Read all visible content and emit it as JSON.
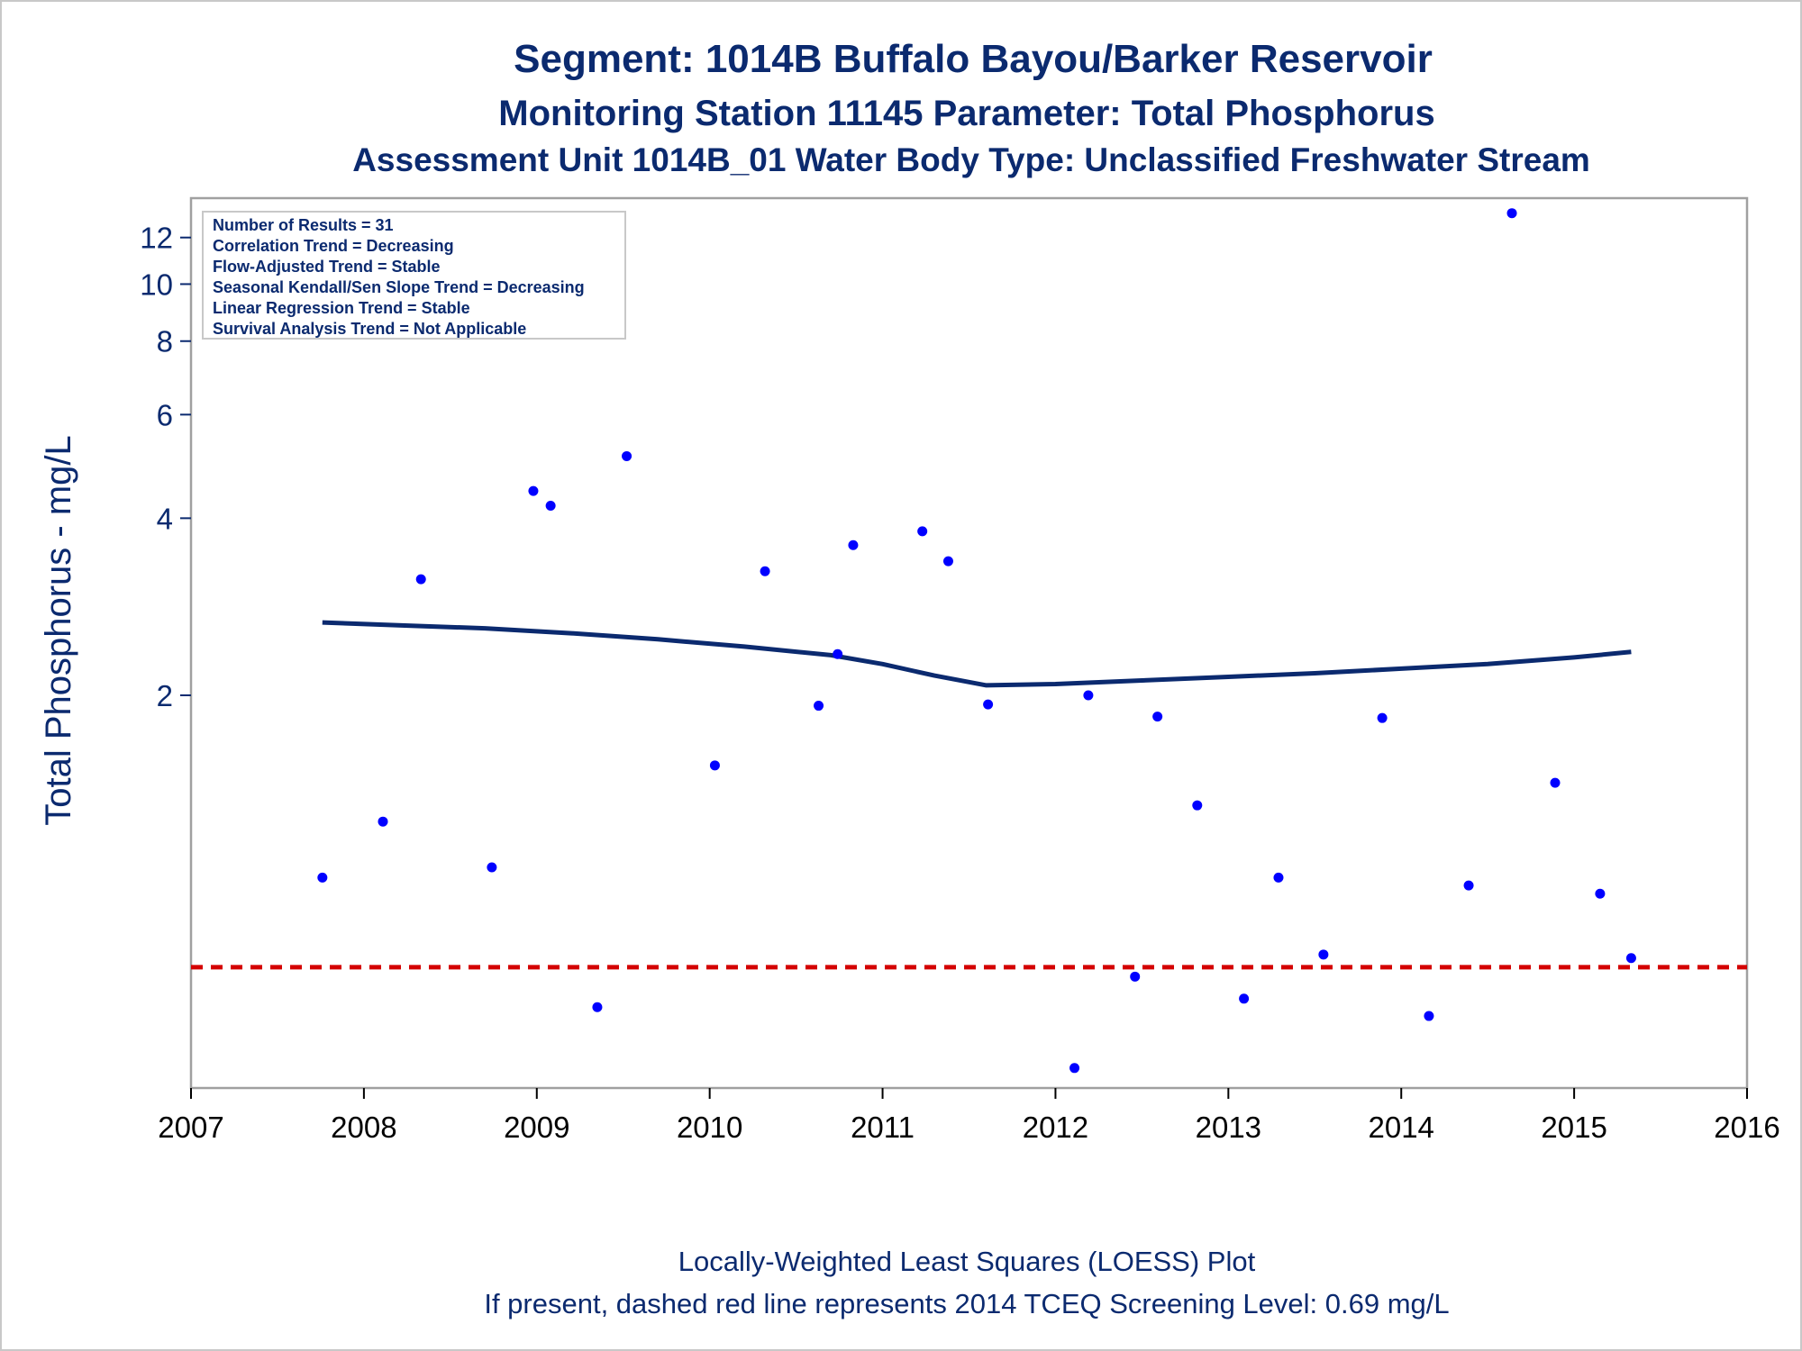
{
  "titles": {
    "line1": "Segment: 1014B  Buffalo Bayou/Barker Reservoir",
    "line2": "Monitoring Station 11145 Parameter: Total Phosphorus",
    "line3": "Assessment Unit 1014B_01   Water Body Type: Unclassified Freshwater Stream"
  },
  "footnotes": {
    "line1": "Locally-Weighted Least Squares (LOESS) Plot",
    "line2": "If present, dashed red line represents 2014 TCEQ Screening Level: 0.69 mg/L"
  },
  "inset": [
    "Number of Results = 31",
    "Correlation Trend = Decreasing",
    "Flow-Adjusted Trend = Stable",
    "Seasonal Kendall/Sen Slope Trend = Decreasing",
    "Linear Regression Trend = Stable",
    "Survival Analysis Trend = Not Applicable"
  ],
  "colors": {
    "points": "#0000ff",
    "loess": "#0b2a6f",
    "screening": "#d40000",
    "frame": "#a0a0a0"
  },
  "chart_data": {
    "type": "scatter",
    "ylabel": "Total Phosphorus - mg/L",
    "y_scale": "log",
    "xlim": [
      2007,
      2016
    ],
    "ylim": [
      0.43,
      14
    ],
    "x_ticks": [
      2007,
      2008,
      2009,
      2010,
      2011,
      2012,
      2013,
      2014,
      2015,
      2016
    ],
    "y_ticks": [
      2,
      4,
      6,
      8,
      10,
      12
    ],
    "grid": false,
    "points": [
      {
        "x": 2007.76,
        "y": 0.98
      },
      {
        "x": 2008.11,
        "y": 1.22
      },
      {
        "x": 2008.33,
        "y": 3.15
      },
      {
        "x": 2008.74,
        "y": 1.02
      },
      {
        "x": 2008.98,
        "y": 4.45
      },
      {
        "x": 2009.08,
        "y": 4.2
      },
      {
        "x": 2009.35,
        "y": 0.59
      },
      {
        "x": 2009.52,
        "y": 5.1
      },
      {
        "x": 2010.03,
        "y": 1.52
      },
      {
        "x": 2010.32,
        "y": 3.25
      },
      {
        "x": 2010.63,
        "y": 1.92
      },
      {
        "x": 2010.74,
        "y": 2.35
      },
      {
        "x": 2010.83,
        "y": 3.6
      },
      {
        "x": 2011.23,
        "y": 3.8
      },
      {
        "x": 2011.38,
        "y": 3.38
      },
      {
        "x": 2011.61,
        "y": 1.93
      },
      {
        "x": 2012.11,
        "y": 0.465
      },
      {
        "x": 2012.19,
        "y": 2.0
      },
      {
        "x": 2012.46,
        "y": 0.665
      },
      {
        "x": 2012.59,
        "y": 1.84
      },
      {
        "x": 2012.82,
        "y": 1.3
      },
      {
        "x": 2013.09,
        "y": 0.61
      },
      {
        "x": 2013.29,
        "y": 0.98
      },
      {
        "x": 2013.55,
        "y": 0.725
      },
      {
        "x": 2013.89,
        "y": 1.83
      },
      {
        "x": 2014.16,
        "y": 0.57
      },
      {
        "x": 2014.39,
        "y": 0.95
      },
      {
        "x": 2014.64,
        "y": 13.2
      },
      {
        "x": 2014.89,
        "y": 1.42
      },
      {
        "x": 2015.15,
        "y": 0.92
      },
      {
        "x": 2015.33,
        "y": 0.715
      }
    ],
    "loess": [
      {
        "x": 2007.76,
        "y": 2.66
      },
      {
        "x": 2008.2,
        "y": 2.63
      },
      {
        "x": 2008.7,
        "y": 2.6
      },
      {
        "x": 2009.2,
        "y": 2.55
      },
      {
        "x": 2009.7,
        "y": 2.49
      },
      {
        "x": 2010.2,
        "y": 2.42
      },
      {
        "x": 2010.7,
        "y": 2.34
      },
      {
        "x": 2011.0,
        "y": 2.26
      },
      {
        "x": 2011.3,
        "y": 2.16
      },
      {
        "x": 2011.6,
        "y": 2.08
      },
      {
        "x": 2012.0,
        "y": 2.09
      },
      {
        "x": 2012.5,
        "y": 2.12
      },
      {
        "x": 2013.0,
        "y": 2.15
      },
      {
        "x": 2013.5,
        "y": 2.18
      },
      {
        "x": 2014.0,
        "y": 2.22
      },
      {
        "x": 2014.5,
        "y": 2.26
      },
      {
        "x": 2015.0,
        "y": 2.32
      },
      {
        "x": 2015.33,
        "y": 2.37
      }
    ],
    "screening_level": 0.69
  }
}
